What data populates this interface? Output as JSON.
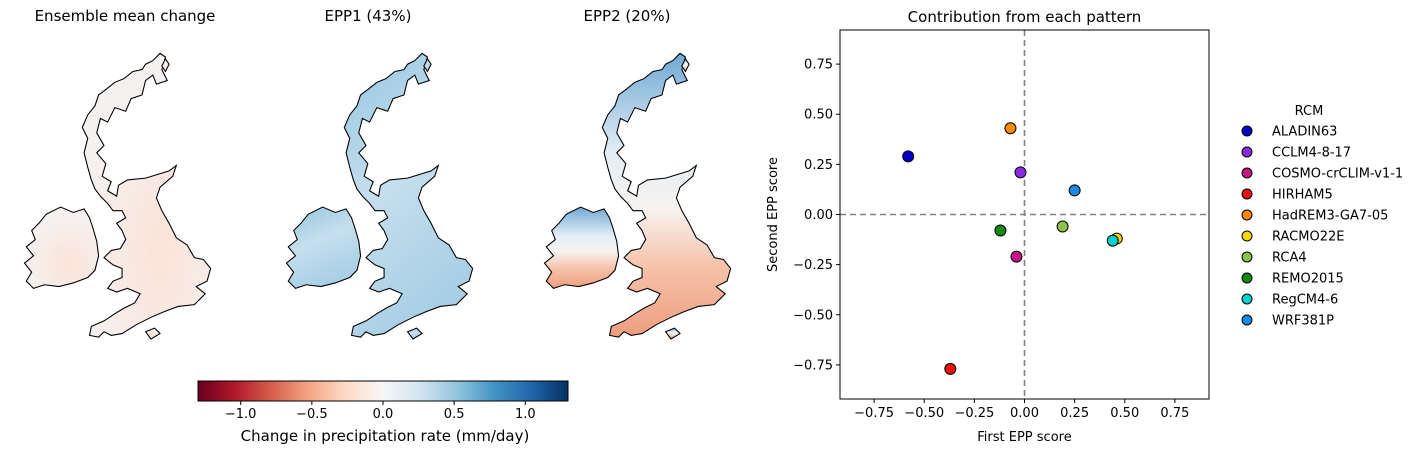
{
  "maps": {
    "panel1_title": "Ensemble mean change",
    "panel2_title": "EPP1 (43%)",
    "panel3_title": "EPP2 (20%)"
  },
  "colorbar": {
    "label": "Change in precipitation rate (mm/day)",
    "range": [
      -1.3,
      1.3
    ],
    "ticks": [
      -1.0,
      -0.5,
      0.0,
      0.5,
      1.0
    ],
    "tick_labels": [
      "−1.0",
      "−0.5",
      "0.0",
      "0.5",
      "1.0"
    ],
    "colormap": "RdBu",
    "colors": [
      "#67001f",
      "#b2182b",
      "#d6604d",
      "#f4a582",
      "#fddbc7",
      "#f7f7f7",
      "#d1e5f0",
      "#92c5de",
      "#4393c3",
      "#2166ac",
      "#053061"
    ]
  },
  "chart_data": {
    "type": "scatter",
    "title": "Contribution from each pattern",
    "xlabel": "First EPP score",
    "ylabel": "Second EPP score",
    "xlim": [
      -0.92,
      0.92
    ],
    "ylim": [
      -0.92,
      0.92
    ],
    "xticks": [
      -0.75,
      -0.5,
      -0.25,
      0.0,
      0.25,
      0.5,
      0.75
    ],
    "xtick_labels": [
      "−0.75",
      "−0.50",
      "−0.25",
      "0.00",
      "0.25",
      "0.50",
      "0.75"
    ],
    "yticks": [
      0.75,
      0.5,
      0.25,
      0.0,
      -0.25,
      -0.5,
      -0.75
    ],
    "ytick_labels": [
      "0.75",
      "0.50",
      "0.25",
      "0.00",
      "−0.25",
      "−0.50",
      "−0.75"
    ],
    "reference_lines": {
      "x": 0.0,
      "y": 0.0,
      "style": "dashed",
      "color": "#808080"
    },
    "legend_title": "RCM",
    "legend_position": "right",
    "series": [
      {
        "name": "ALADIN63",
        "x": -0.58,
        "y": 0.29,
        "color": "#0000c8"
      },
      {
        "name": "CCLM4-8-17",
        "x": -0.02,
        "y": 0.21,
        "color": "#8a2be2"
      },
      {
        "name": "COSMO-crCLIM-v1-1",
        "x": -0.04,
        "y": -0.21,
        "color": "#c71585"
      },
      {
        "name": "HIRHAM5",
        "x": -0.37,
        "y": -0.77,
        "color": "#e81010"
      },
      {
        "name": "HadREM3-GA7-05",
        "x": -0.07,
        "y": 0.43,
        "color": "#ff8c00"
      },
      {
        "name": "RACMO22E",
        "x": 0.46,
        "y": -0.12,
        "color": "#ffd700"
      },
      {
        "name": "RCA4",
        "x": 0.19,
        "y": -0.06,
        "color": "#8bc34a"
      },
      {
        "name": "REMO2015",
        "x": -0.12,
        "y": -0.08,
        "color": "#138a13"
      },
      {
        "name": "RegCM4-6",
        "x": 0.44,
        "y": -0.13,
        "color": "#00d0d0"
      },
      {
        "name": "WRF381P",
        "x": 0.25,
        "y": 0.12,
        "color": "#1e88e5"
      }
    ]
  }
}
